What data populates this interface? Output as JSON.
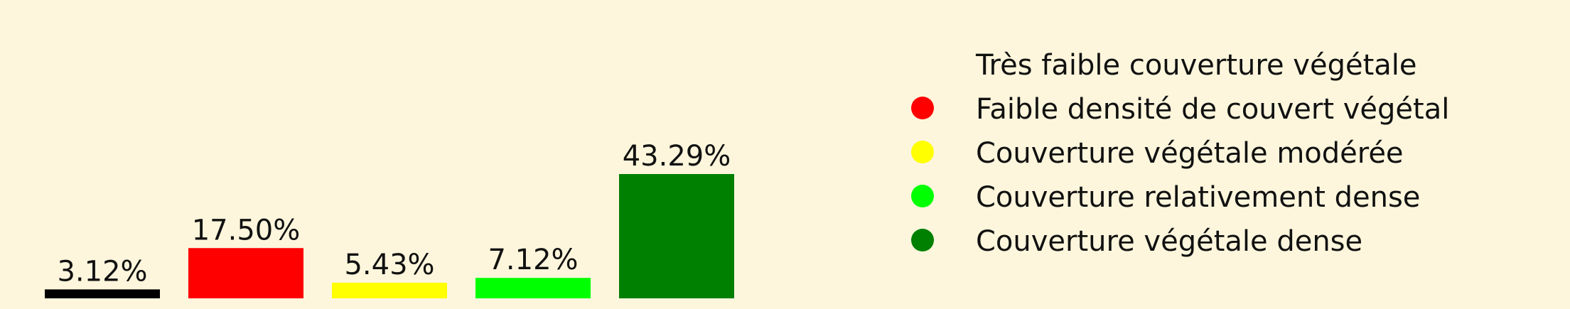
{
  "chart_data": {
    "type": "bar",
    "title": "",
    "xlabel": "",
    "ylabel": "",
    "ylim": [
      0,
      50
    ],
    "grid": false,
    "legend_position": "top-right",
    "categories": [
      "Très faible couverture végétale",
      "Faible densité de couvert végétal",
      "Couverture végétale modérée",
      "Couverture relativement dense",
      "Couverture végétale dense"
    ],
    "values": [
      3.12,
      17.5,
      5.43,
      7.12,
      43.29
    ],
    "value_labels": [
      "3.12%",
      "17.50%",
      "5.43%",
      "7.12%",
      "43.29%"
    ],
    "colors": [
      "#000000",
      "#ff0000",
      "#ffff00",
      "#00ff00",
      "#008000"
    ]
  }
}
